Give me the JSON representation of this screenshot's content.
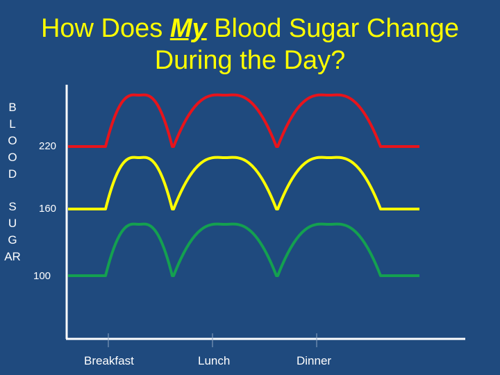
{
  "title_pre": "How Does ",
  "title_em": "My",
  "title_post": " Blood Sugar Change",
  "title_line2": "During the Day?",
  "ylabel_word1": [
    "B",
    "L",
    "O",
    "O",
    "D"
  ],
  "ylabel_word2": [
    "S",
    "U",
    "G",
    "AR"
  ],
  "colors": {
    "background": "#1f4a7e",
    "title": "#ffff00",
    "axis": "#ffffff",
    "red": "#e8141b",
    "yellow": "#ffff00",
    "green": "#14a050"
  },
  "chart_data": {
    "type": "line",
    "ytick_labels": [
      "220",
      "160",
      "100"
    ],
    "xtick_labels": [
      "Breakfast",
      "Lunch",
      "Dinner"
    ],
    "series": [
      {
        "color": "#e8141b",
        "baseline": 220
      },
      {
        "color": "#ffff00",
        "baseline": 160
      },
      {
        "color": "#14a050",
        "baseline": 100
      }
    ],
    "grid": false,
    "legend": "none"
  }
}
